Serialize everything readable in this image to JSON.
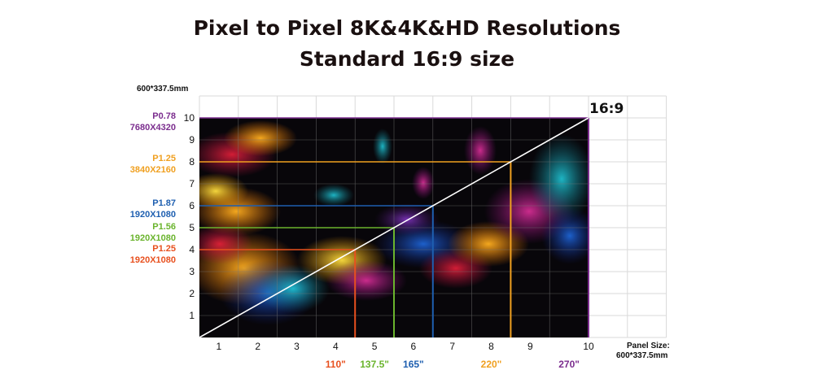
{
  "chart_data": {
    "type": "diagram",
    "title": "Pixel to Pixel 8K&4K&HD Resolutions",
    "subtitle": "Standard 16:9 size",
    "top_left_label": "600*337.5mm",
    "ratio_label": "16:9",
    "x_ticks": [
      "1",
      "2",
      "3",
      "4",
      "5",
      "6",
      "7",
      "8",
      "9",
      "10"
    ],
    "y_ticks": [
      "10",
      "9",
      "8",
      "7",
      "6",
      "5",
      "4",
      "3",
      "2",
      "1"
    ],
    "xlim": [
      0,
      10
    ],
    "ylim": [
      0,
      10
    ],
    "panel_size_label": "Panel Size:",
    "panel_size_value": "600*337.5mm",
    "screens": [
      {
        "pitch": "P0.78",
        "resolution": "7680X4320",
        "cols": 10,
        "rows": 10,
        "size": "270\"",
        "color": "#7b2d8e"
      },
      {
        "pitch": "P1.25",
        "resolution": "3840X2160",
        "cols": 8,
        "rows": 8,
        "size": "220\"",
        "color": "#f0a020"
      },
      {
        "pitch": "P1.87",
        "resolution": "1920X1080",
        "cols": 6,
        "rows": 6,
        "size": "165\"",
        "color": "#1e5fb0"
      },
      {
        "pitch": "P1.56",
        "resolution": "1920X1080",
        "cols": 5,
        "rows": 5,
        "size": "137.5\"",
        "color": "#6ab42d"
      },
      {
        "pitch": "P1.25",
        "resolution": "1920X1080",
        "cols": 4,
        "rows": 4,
        "size": "110\"",
        "color": "#e8501e"
      }
    ]
  }
}
